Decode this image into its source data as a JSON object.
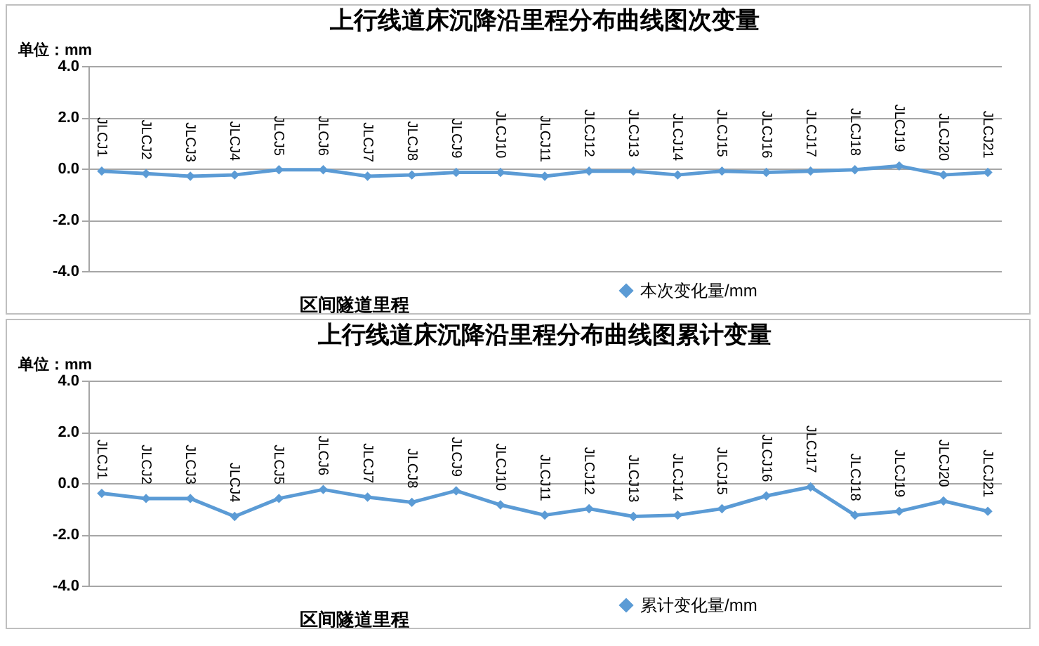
{
  "chart_data": [
    {
      "type": "line",
      "title": "上行线道床沉降沿里程分布曲线图次变量",
      "xlabel": "区间隧道里程",
      "annotations": [
        "单位：mm"
      ],
      "categories": [
        "JLCJ1",
        "JLCJ2",
        "JLCJ3",
        "JLCJ4",
        "JLCJ5",
        "JLCJ6",
        "JLCJ7",
        "JLCJ8",
        "JLCJ9",
        "JLCJ10",
        "JLCJ11",
        "JLCJ12",
        "JLCJ13",
        "JLCJ14",
        "JLCJ15",
        "JLCJ16",
        "JLCJ17",
        "JLCJ18",
        "JLCJ19",
        "JLCJ20",
        "JLCJ21"
      ],
      "series": [
        {
          "name": "本次变化量/mm",
          "color": "#5b9bd5",
          "values": [
            -0.1,
            -0.2,
            -0.3,
            -0.25,
            -0.05,
            -0.05,
            -0.3,
            -0.25,
            -0.15,
            -0.15,
            -0.3,
            -0.1,
            -0.1,
            -0.25,
            -0.1,
            -0.15,
            -0.1,
            -0.05,
            0.1,
            -0.25,
            -0.15
          ]
        }
      ],
      "ylim": [
        -4,
        4
      ],
      "yticks": [
        {
          "value": -4,
          "label": "-4.0"
        },
        {
          "value": -2,
          "label": "-2.0"
        },
        {
          "value": 0,
          "label": "0.0"
        },
        {
          "value": 2,
          "label": "2.0"
        },
        {
          "value": 4,
          "label": "4.0"
        }
      ],
      "grid": "y",
      "legend": "bottom",
      "marker": "diamond",
      "line_style": "solid",
      "tick_labels": "y"
    },
    {
      "type": "line",
      "title": "上行线道床沉降沿里程分布曲线图累计变量",
      "xlabel": "区间隧道里程",
      "annotations": [
        "单位：mm"
      ],
      "categories": [
        "JLCJ1",
        "JLCJ2",
        "JLCJ3",
        "JLCJ4",
        "JLCJ5",
        "JLCJ6",
        "JLCJ7",
        "JLCJ8",
        "JLCJ9",
        "JLCJ10",
        "JLCJ11",
        "JLCJ12",
        "JLCJ13",
        "JLCJ14",
        "JLCJ15",
        "JLCJ16",
        "JLCJ17",
        "JLCJ18",
        "JLCJ19",
        "JLCJ20",
        "JLCJ21"
      ],
      "series": [
        {
          "name": "累计变化量/mm",
          "color": "#5b9bd5",
          "values": [
            -0.4,
            -0.6,
            -0.6,
            -1.3,
            -0.6,
            -0.25,
            -0.55,
            -0.75,
            -0.3,
            -0.85,
            -1.25,
            -1.0,
            -1.3,
            -1.25,
            -1.0,
            -0.5,
            -0.15,
            -1.25,
            -1.1,
            -0.7,
            -1.1
          ]
        }
      ],
      "ylim": [
        -4,
        4
      ],
      "yticks": [
        {
          "value": -4,
          "label": "-4.0"
        },
        {
          "value": -2,
          "label": "-2.0"
        },
        {
          "value": 0,
          "label": "0.0"
        },
        {
          "value": 2,
          "label": "2.0"
        },
        {
          "value": 4,
          "label": "4.0"
        }
      ],
      "grid": "y",
      "legend": "bottom",
      "marker": "diamond",
      "line_style": "solid",
      "tick_labels": "y"
    }
  ]
}
